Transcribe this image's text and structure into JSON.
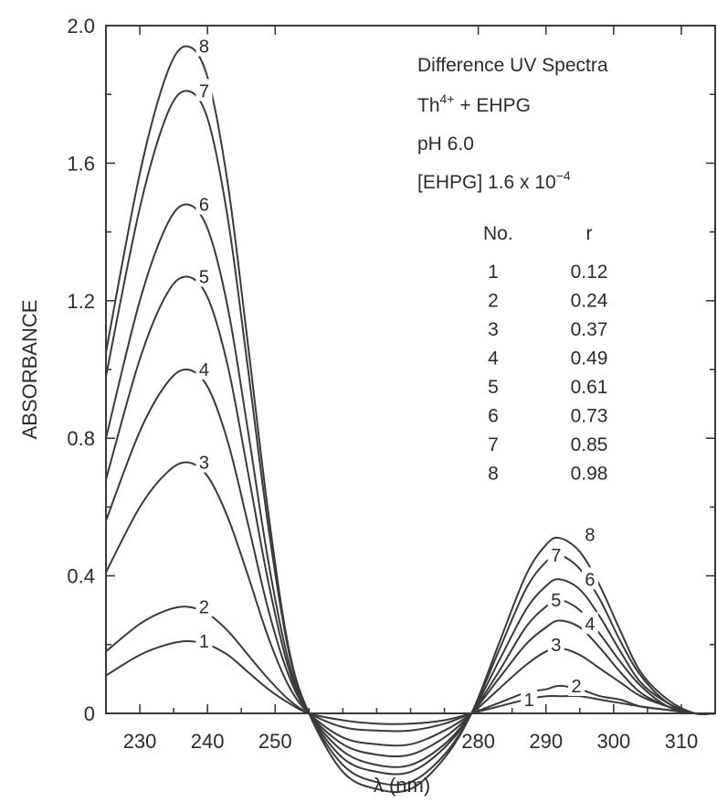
{
  "chart_data": {
    "type": "line",
    "xlabel": "λ (nm)",
    "ylabel": "ABSORBANCE",
    "xlim": [
      225,
      315
    ],
    "ylim": [
      0,
      2.0
    ],
    "x_ticks": [
      230,
      240,
      250,
      280,
      290,
      300,
      310
    ],
    "y_ticks": [
      {
        "value": 0,
        "label": "0"
      },
      {
        "value": 0.4,
        "label": "0.4"
      },
      {
        "value": 0.8,
        "label": "0.8"
      },
      {
        "value": 1.2,
        "label": "1.2"
      },
      {
        "value": 1.6,
        "label": "1.6"
      },
      {
        "value": 2.0,
        "label": "2.0"
      }
    ],
    "grid": false,
    "annotations": {
      "title": "Difference UV Spectra",
      "system_base": "Th",
      "system_sup": "4+",
      "system_rest": " + EHPG",
      "ph": "pH 6.0",
      "conc_base": "[EHPG]  1.6 x 10",
      "conc_sup": "−4",
      "table_header": {
        "no": "No.",
        "r": "r"
      },
      "table": [
        {
          "no": "1",
          "r": "0.12"
        },
        {
          "no": "2",
          "r": "0.24"
        },
        {
          "no": "3",
          "r": "0.37"
        },
        {
          "no": "4",
          "r": "0.49"
        },
        {
          "no": "5",
          "r": "0.61"
        },
        {
          "no": "6",
          "r": "0.73"
        },
        {
          "no": "7",
          "r": "0.85"
        },
        {
          "no": "8",
          "r": "0.98"
        }
      ]
    },
    "series": [
      {
        "name": "1",
        "x": [
          225,
          230,
          234,
          237,
          240,
          243,
          246,
          249,
          252,
          255,
          260,
          265,
          270,
          275,
          279,
          283,
          287,
          290,
          292,
          295,
          298,
          301,
          304,
          308,
          312,
          315
        ],
        "y": [
          0.11,
          0.17,
          0.2,
          0.21,
          0.2,
          0.17,
          0.12,
          0.07,
          0.03,
          0.0,
          -0.02,
          -0.03,
          -0.03,
          -0.02,
          0.0,
          0.02,
          0.04,
          0.05,
          0.05,
          0.05,
          0.04,
          0.03,
          0.02,
          0.01,
          0.0,
          0.0
        ]
      },
      {
        "name": "2",
        "x": [
          225,
          230,
          234,
          237,
          240,
          243,
          246,
          249,
          252,
          255,
          260,
          265,
          270,
          275,
          279,
          283,
          287,
          290,
          292,
          295,
          298,
          301,
          304,
          308,
          312,
          315
        ],
        "y": [
          0.18,
          0.26,
          0.3,
          0.31,
          0.29,
          0.24,
          0.17,
          0.1,
          0.04,
          0.0,
          -0.04,
          -0.05,
          -0.05,
          -0.03,
          0.0,
          0.03,
          0.06,
          0.07,
          0.08,
          0.07,
          0.05,
          0.04,
          0.02,
          0.01,
          0.0,
          0.0
        ]
      },
      {
        "name": "3",
        "x": [
          225,
          230,
          234,
          237,
          240,
          243,
          246,
          249,
          252,
          255,
          260,
          265,
          270,
          275,
          279,
          283,
          287,
          290,
          292,
          295,
          298,
          301,
          304,
          308,
          312,
          315
        ],
        "y": [
          0.41,
          0.6,
          0.7,
          0.73,
          0.69,
          0.57,
          0.4,
          0.22,
          0.08,
          0.0,
          -0.07,
          -0.09,
          -0.09,
          -0.05,
          0.0,
          0.07,
          0.14,
          0.18,
          0.19,
          0.17,
          0.13,
          0.09,
          0.05,
          0.02,
          0.0,
          0.0
        ]
      },
      {
        "name": "4",
        "x": [
          225,
          230,
          234,
          237,
          240,
          243,
          246,
          249,
          252,
          255,
          260,
          265,
          270,
          275,
          279,
          283,
          287,
          290,
          292,
          295,
          298,
          301,
          304,
          308,
          312,
          315
        ],
        "y": [
          0.56,
          0.82,
          0.96,
          1.0,
          0.95,
          0.79,
          0.55,
          0.3,
          0.11,
          0.0,
          -0.09,
          -0.12,
          -0.12,
          -0.07,
          0.0,
          0.1,
          0.2,
          0.25,
          0.27,
          0.25,
          0.19,
          0.12,
          0.06,
          0.02,
          0.0,
          0.0
        ]
      },
      {
        "name": "5",
        "x": [
          225,
          230,
          234,
          237,
          240,
          243,
          246,
          249,
          252,
          255,
          260,
          265,
          270,
          275,
          279,
          283,
          287,
          290,
          292,
          295,
          298,
          301,
          304,
          308,
          312,
          315
        ],
        "y": [
          0.68,
          1.03,
          1.22,
          1.27,
          1.21,
          1.01,
          0.7,
          0.38,
          0.13,
          0.0,
          -0.11,
          -0.15,
          -0.15,
          -0.09,
          0.0,
          0.12,
          0.25,
          0.31,
          0.33,
          0.3,
          0.23,
          0.15,
          0.08,
          0.02,
          0.0,
          0.0
        ]
      },
      {
        "name": "6",
        "x": [
          225,
          230,
          234,
          237,
          240,
          243,
          246,
          249,
          252,
          255,
          260,
          265,
          270,
          275,
          279,
          283,
          287,
          290,
          292,
          295,
          298,
          301,
          304,
          308,
          312,
          315
        ],
        "y": [
          0.8,
          1.2,
          1.42,
          1.48,
          1.41,
          1.18,
          0.82,
          0.44,
          0.15,
          0.0,
          -0.13,
          -0.17,
          -0.17,
          -0.1,
          0.0,
          0.15,
          0.3,
          0.37,
          0.39,
          0.36,
          0.28,
          0.18,
          0.09,
          0.03,
          0.0,
          0.0
        ]
      },
      {
        "name": "7",
        "x": [
          225,
          230,
          234,
          237,
          240,
          243,
          246,
          249,
          252,
          255,
          260,
          265,
          270,
          275,
          279,
          283,
          287,
          290,
          292,
          295,
          298,
          301,
          304,
          308,
          312,
          315
        ],
        "y": [
          0.98,
          1.47,
          1.74,
          1.81,
          1.73,
          1.44,
          1.0,
          0.54,
          0.18,
          0.0,
          -0.15,
          -0.2,
          -0.2,
          -0.12,
          0.0,
          0.18,
          0.36,
          0.44,
          0.46,
          0.42,
          0.33,
          0.21,
          0.11,
          0.03,
          0.0,
          0.0
        ]
      },
      {
        "name": "8",
        "x": [
          225,
          230,
          234,
          237,
          240,
          243,
          246,
          249,
          252,
          255,
          260,
          265,
          270,
          275,
          279,
          283,
          287,
          290,
          292,
          295,
          298,
          301,
          304,
          308,
          312,
          315
        ],
        "y": [
          1.05,
          1.57,
          1.86,
          1.94,
          1.85,
          1.54,
          1.07,
          0.58,
          0.19,
          0.0,
          -0.17,
          -0.22,
          -0.22,
          -0.13,
          0.0,
          0.2,
          0.4,
          0.49,
          0.51,
          0.47,
          0.37,
          0.24,
          0.12,
          0.04,
          0.0,
          0.0
        ]
      }
    ],
    "curve_labels": [
      {
        "name": "1",
        "x": 239.5,
        "y": 0.21
      },
      {
        "name": "2",
        "x": 239.5,
        "y": 0.31
      },
      {
        "name": "3",
        "x": 239.5,
        "y": 0.73
      },
      {
        "name": "4",
        "x": 239.5,
        "y": 1.0
      },
      {
        "name": "5",
        "x": 239.5,
        "y": 1.27
      },
      {
        "name": "6",
        "x": 239.5,
        "y": 1.48
      },
      {
        "name": "7",
        "x": 239.5,
        "y": 1.81
      },
      {
        "name": "8",
        "x": 239.5,
        "y": 1.94
      },
      {
        "name": "1",
        "x": 287.5,
        "y": 0.04
      },
      {
        "name": "2",
        "x": 294.5,
        "y": 0.08
      },
      {
        "name": "3",
        "x": 291.5,
        "y": 0.2
      },
      {
        "name": "4",
        "x": 296.5,
        "y": 0.26
      },
      {
        "name": "5",
        "x": 291.5,
        "y": 0.33
      },
      {
        "name": "6",
        "x": 296.5,
        "y": 0.39
      },
      {
        "name": "7",
        "x": 291.5,
        "y": 0.46
      },
      {
        "name": "8",
        "x": 296.5,
        "y": 0.52
      }
    ]
  }
}
